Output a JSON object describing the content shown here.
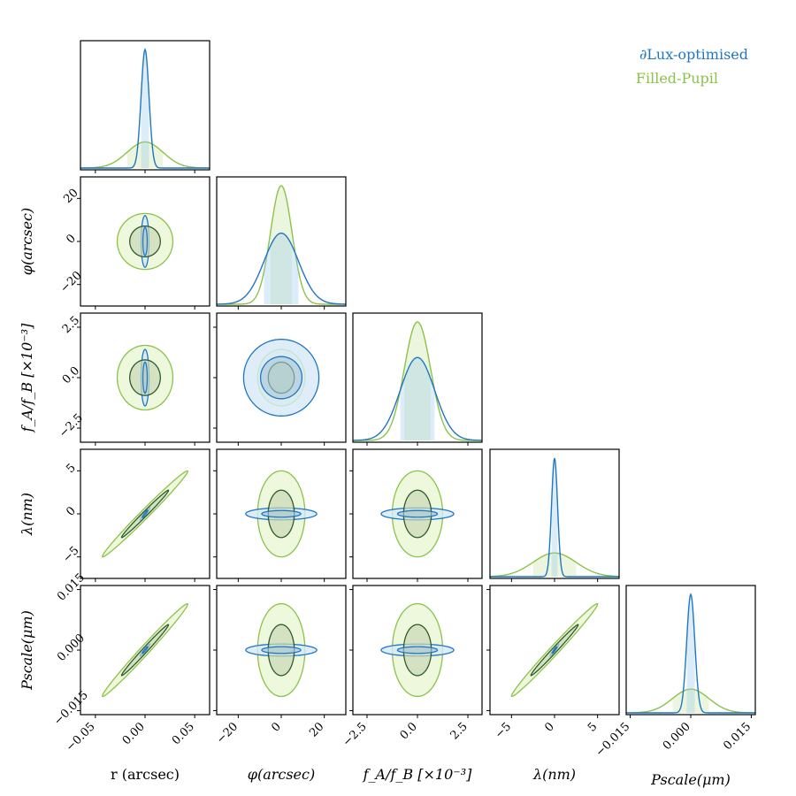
{
  "chart_data": {
    "type": "corner",
    "colors": {
      "dlux": "#1f77c4",
      "filled": "#8bc34a",
      "inner_dark": "#2e5a2e"
    },
    "legend": {
      "placement": "top-right",
      "entries": [
        {
          "label": "∂Lux-optimised",
          "color": "#1f77c4"
        },
        {
          "label": "Filled-Pupil",
          "color": "#8bc34a"
        }
      ]
    },
    "parameters": [
      {
        "key": "r",
        "xlabel": "r (arcsec)",
        "ylabel": "",
        "range": [
          -0.065,
          0.065
        ],
        "ticks": [
          -0.05,
          0.0,
          0.05
        ],
        "tick_labels": [
          "−0.05",
          "0.00",
          "0.05"
        ],
        "dlux_sigma": 0.004,
        "filled_sigma": 0.018,
        "dlux_peak": 1.0,
        "filled_peak": 0.22
      },
      {
        "key": "phi",
        "xlabel": "φ(arcsec)",
        "ylabel": "φ(arcsec)",
        "range": [
          -30,
          30
        ],
        "ticks": [
          -20,
          0,
          20
        ],
        "tick_labels": [
          "−20",
          "0",
          "20"
        ],
        "dlux_sigma": 8.0,
        "filled_sigma": 5.0,
        "dlux_peak": 0.6,
        "filled_peak": 1.0
      },
      {
        "key": "fafb",
        "xlabel": "f_A/f_B [×10⁻³]",
        "ylabel": "f_A/f_B [×10⁻³]",
        "range": [
          -3.2,
          3.2
        ],
        "ticks": [
          -2.5,
          0.0,
          2.5
        ],
        "tick_labels": [
          "−2.5",
          "0.0",
          "2.5"
        ],
        "dlux_sigma": 0.85,
        "filled_sigma": 0.65,
        "dlux_peak": 0.7,
        "filled_peak": 1.0
      },
      {
        "key": "lambda",
        "xlabel": "λ(nm)",
        "ylabel": "λ(nm)",
        "range": [
          -7.5,
          7.5
        ],
        "ticks": [
          -5,
          0,
          5
        ],
        "tick_labels": [
          "−5",
          "0",
          "5"
        ],
        "dlux_sigma": 0.35,
        "filled_sigma": 2.5,
        "dlux_peak": 1.0,
        "filled_peak": 0.2
      },
      {
        "key": "pscale",
        "xlabel": "Pscale(μm)",
        "ylabel": "Pscale(μm)",
        "range": [
          -0.016,
          0.016
        ],
        "ticks": [
          -0.015,
          0.0,
          0.015
        ],
        "tick_labels": [
          "−0.015",
          "0.000",
          "0.015"
        ],
        "dlux_sigma": 0.001,
        "filled_sigma": 0.0045,
        "dlux_peak": 1.0,
        "filled_peak": 0.2
      }
    ],
    "ellipses": [
      {
        "x": "r",
        "y": "phi",
        "dlux": [
          0.004,
          12,
          0
        ],
        "filled": [
          0.028,
          13,
          0
        ]
      },
      {
        "x": "r",
        "y": "fafb",
        "dlux": [
          0.004,
          1.4,
          0
        ],
        "filled": [
          0.028,
          1.6,
          0
        ]
      },
      {
        "x": "phi",
        "y": "fafb",
        "dlux": [
          17.5,
          1.9,
          0
        ],
        "filled": [
          11,
          1.4,
          0
        ]
      },
      {
        "x": "r",
        "y": "lambda",
        "dlux": [
          0.005,
          0.8,
          0.95
        ],
        "filled": [
          0.043,
          5.0,
          0.99
        ]
      },
      {
        "x": "phi",
        "y": "lambda",
        "dlux": [
          16.5,
          0.7,
          0
        ],
        "filled": [
          11,
          5.0,
          0
        ]
      },
      {
        "x": "fafb",
        "y": "lambda",
        "dlux": [
          1.8,
          0.7,
          0
        ],
        "filled": [
          1.25,
          5.0,
          0
        ]
      },
      {
        "x": "r",
        "y": "pscale",
        "dlux": [
          0.005,
          0.0015,
          0.95
        ],
        "filled": [
          0.043,
          0.0115,
          0.99
        ]
      },
      {
        "x": "phi",
        "y": "pscale",
        "dlux": [
          16.5,
          0.0015,
          0
        ],
        "filled": [
          11,
          0.0115,
          0
        ]
      },
      {
        "x": "fafb",
        "y": "pscale",
        "dlux": [
          1.8,
          0.0015,
          0
        ],
        "filled": [
          1.25,
          0.0115,
          0
        ]
      },
      {
        "x": "lambda",
        "y": "pscale",
        "dlux": [
          0.5,
          0.0015,
          0.95
        ],
        "filled": [
          5.0,
          0.0115,
          0.99
        ]
      }
    ]
  }
}
